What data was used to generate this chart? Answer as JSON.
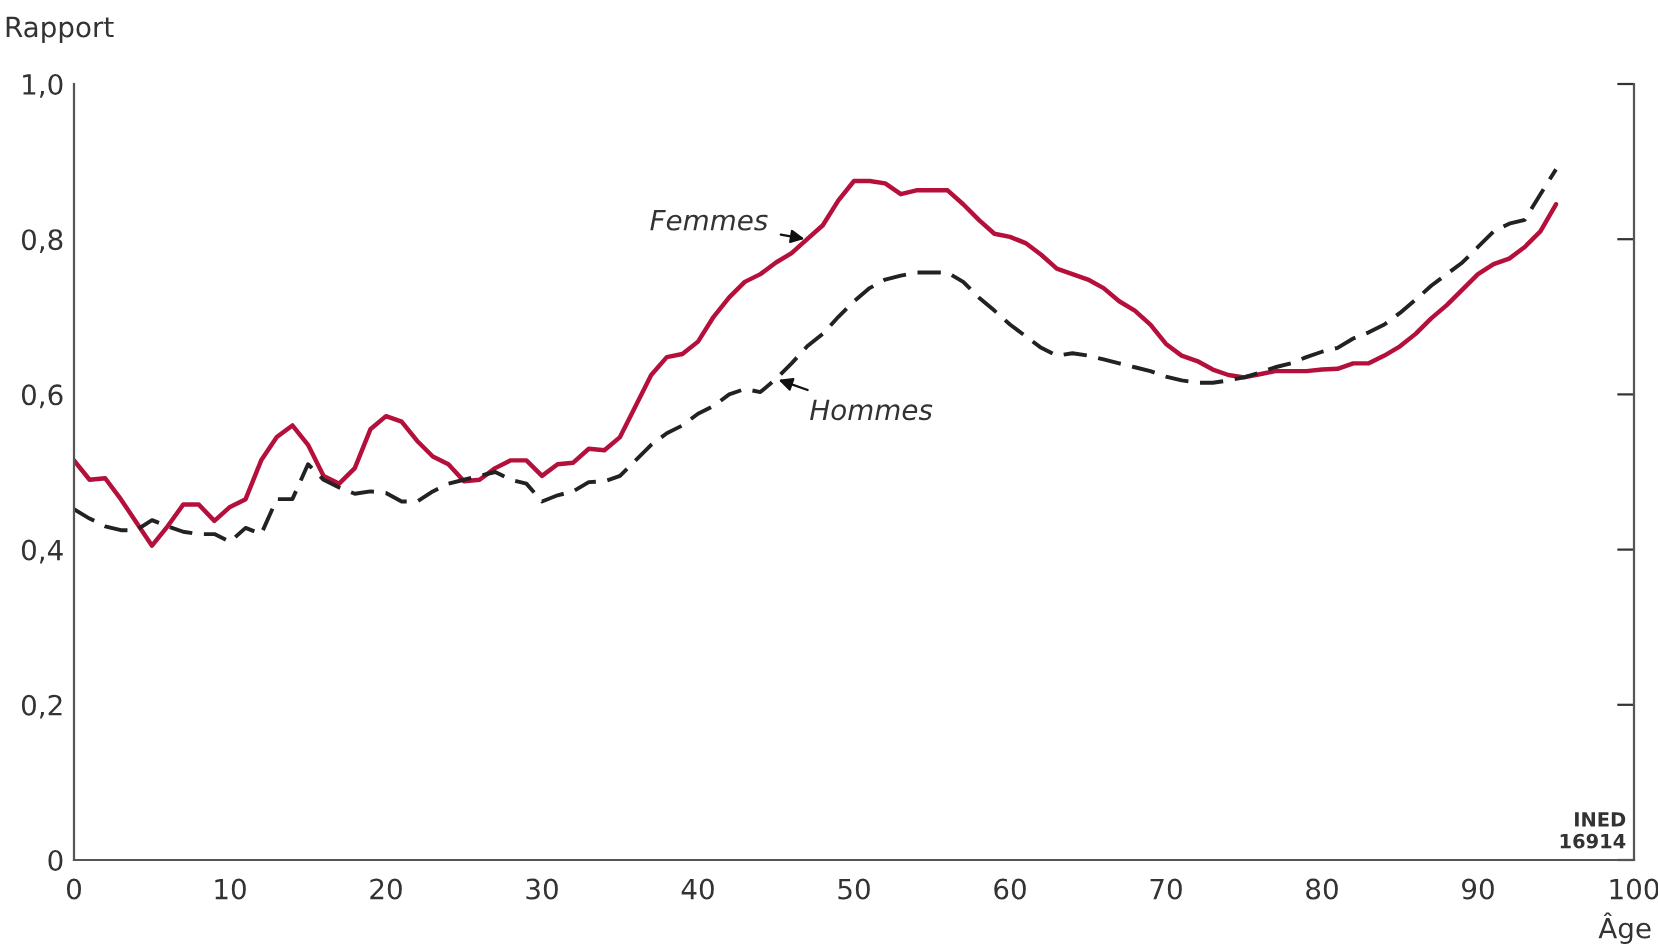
{
  "chart_data": {
    "type": "line",
    "xlabel": "Âge",
    "ylabel": "Rapport",
    "x": [
      0,
      1,
      2,
      3,
      4,
      5,
      6,
      7,
      8,
      9,
      10,
      11,
      12,
      13,
      14,
      15,
      16,
      17,
      18,
      19,
      20,
      21,
      22,
      23,
      24,
      25,
      26,
      27,
      28,
      29,
      30,
      31,
      32,
      33,
      34,
      35,
      36,
      37,
      38,
      39,
      40,
      41,
      42,
      43,
      44,
      45,
      46,
      47,
      48,
      49,
      50,
      51,
      52,
      53,
      54,
      55,
      56,
      57,
      58,
      59,
      60,
      61,
      62,
      63,
      64,
      65,
      66,
      67,
      68,
      69,
      70,
      71,
      72,
      73,
      74,
      75,
      76,
      77,
      78,
      79,
      80,
      81,
      82,
      83,
      84,
      85,
      86,
      87,
      88,
      89,
      90,
      91,
      92,
      93,
      94,
      95
    ],
    "series": [
      {
        "name": "Femmes",
        "color": "#b5103c",
        "line_style": "solid",
        "values": [
          0.515,
          0.49,
          0.492,
          0.465,
          0.435,
          0.405,
          0.43,
          0.458,
          0.458,
          0.437,
          0.455,
          0.465,
          0.515,
          0.545,
          0.56,
          0.535,
          0.495,
          0.485,
          0.505,
          0.555,
          0.572,
          0.565,
          0.54,
          0.52,
          0.51,
          0.488,
          0.49,
          0.505,
          0.515,
          0.515,
          0.495,
          0.51,
          0.512,
          0.53,
          0.528,
          0.545,
          0.585,
          0.625,
          0.648,
          0.652,
          0.668,
          0.7,
          0.725,
          0.745,
          0.755,
          0.77,
          0.782,
          0.8,
          0.818,
          0.85,
          0.875,
          0.875,
          0.872,
          0.858,
          0.863,
          0.863,
          0.863,
          0.845,
          0.825,
          0.807,
          0.803,
          0.795,
          0.78,
          0.762,
          0.755,
          0.748,
          0.737,
          0.72,
          0.708,
          0.69,
          0.665,
          0.65,
          0.643,
          0.632,
          0.625,
          0.622,
          0.626,
          0.63,
          0.63,
          0.63,
          0.632,
          0.633,
          0.64,
          0.64,
          0.65,
          0.662,
          0.678,
          0.698,
          0.715,
          0.735,
          0.755,
          0.768,
          0.775,
          0.79,
          0.81,
          0.845
        ]
      },
      {
        "name": "Hommes",
        "color": "#222222",
        "line_style": "dashed",
        "values": [
          0.452,
          0.44,
          0.43,
          0.425,
          0.425,
          0.438,
          0.43,
          0.423,
          0.42,
          0.42,
          0.41,
          0.428,
          0.42,
          0.465,
          0.465,
          0.51,
          0.49,
          0.48,
          0.472,
          0.475,
          0.473,
          0.462,
          0.462,
          0.475,
          0.485,
          0.49,
          0.495,
          0.5,
          0.49,
          0.485,
          0.462,
          0.47,
          0.475,
          0.487,
          0.488,
          0.495,
          0.515,
          0.535,
          0.55,
          0.56,
          0.575,
          0.585,
          0.6,
          0.607,
          0.603,
          0.62,
          0.64,
          0.662,
          0.678,
          0.7,
          0.72,
          0.737,
          0.748,
          0.753,
          0.757,
          0.757,
          0.757,
          0.745,
          0.725,
          0.708,
          0.69,
          0.675,
          0.66,
          0.65,
          0.653,
          0.65,
          0.645,
          0.64,
          0.635,
          0.63,
          0.623,
          0.618,
          0.615,
          0.615,
          0.618,
          0.622,
          0.628,
          0.635,
          0.64,
          0.648,
          0.655,
          0.66,
          0.672,
          0.68,
          0.69,
          0.705,
          0.722,
          0.74,
          0.755,
          0.77,
          0.79,
          0.81,
          0.82,
          0.825,
          0.858,
          0.89
        ]
      }
    ],
    "xlim": [
      0,
      100
    ],
    "xticks": [
      0,
      10,
      20,
      30,
      40,
      50,
      60,
      70,
      80,
      90,
      100
    ],
    "ylim": [
      0,
      1
    ],
    "yticks": [
      {
        "value": 0,
        "label": "0"
      },
      {
        "value": 0.2,
        "label": "0,2"
      },
      {
        "value": 0.4,
        "label": "0,4"
      },
      {
        "value": 0.6,
        "label": "0,6"
      },
      {
        "value": 0.8,
        "label": "0,8"
      },
      {
        "value": 1,
        "label": "1,0"
      }
    ],
    "grid": false,
    "legend": false,
    "annotations": [
      "INED\n16914"
    ]
  }
}
